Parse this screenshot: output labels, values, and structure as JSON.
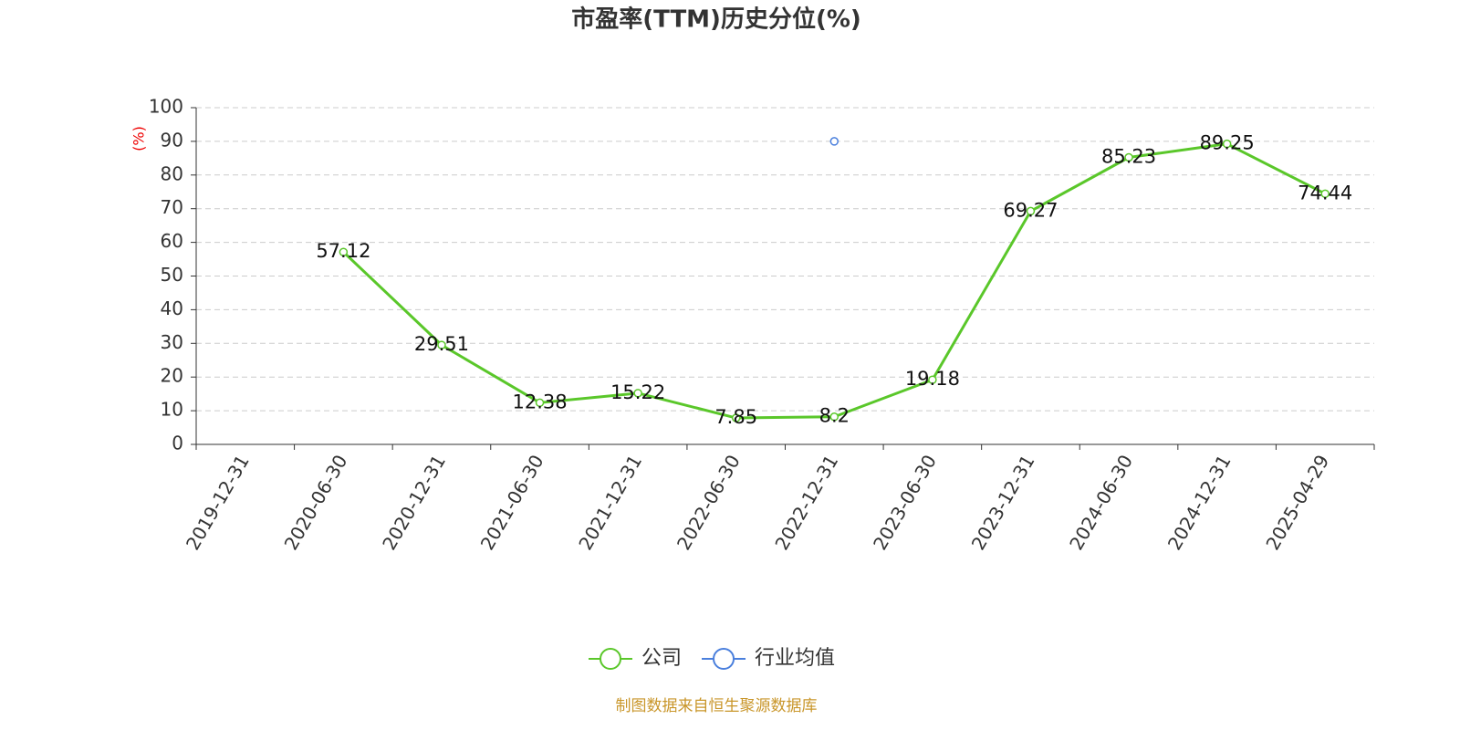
{
  "chart_data": {
    "type": "line",
    "title": "市盈率(TTM)历史分位(%)",
    "y_label": "(%)",
    "categories": [
      "2019-12-31",
      "2020-06-30",
      "2020-12-31",
      "2021-06-30",
      "2021-12-31",
      "2022-06-30",
      "2022-12-31",
      "2023-06-30",
      "2023-12-31",
      "2024-06-30",
      "2024-12-31",
      "2025-04-29"
    ],
    "series": [
      {
        "name": "公司",
        "color": "#5ac72a",
        "values": [
          null,
          57.12,
          29.51,
          12.38,
          15.22,
          7.85,
          8.2,
          19.18,
          69.27,
          85.23,
          89.25,
          74.44
        ]
      },
      {
        "name": "行业均值",
        "color": "#4a7fdd",
        "values": [
          null,
          null,
          null,
          null,
          null,
          null,
          90,
          null,
          null,
          null,
          null,
          null
        ]
      }
    ],
    "ylim": [
      0,
      100
    ],
    "yticks": [
      0,
      10,
      20,
      30,
      40,
      50,
      60,
      70,
      80,
      90,
      100
    ],
    "grid": true,
    "source": "制图数据来自恒生聚源数据库"
  }
}
